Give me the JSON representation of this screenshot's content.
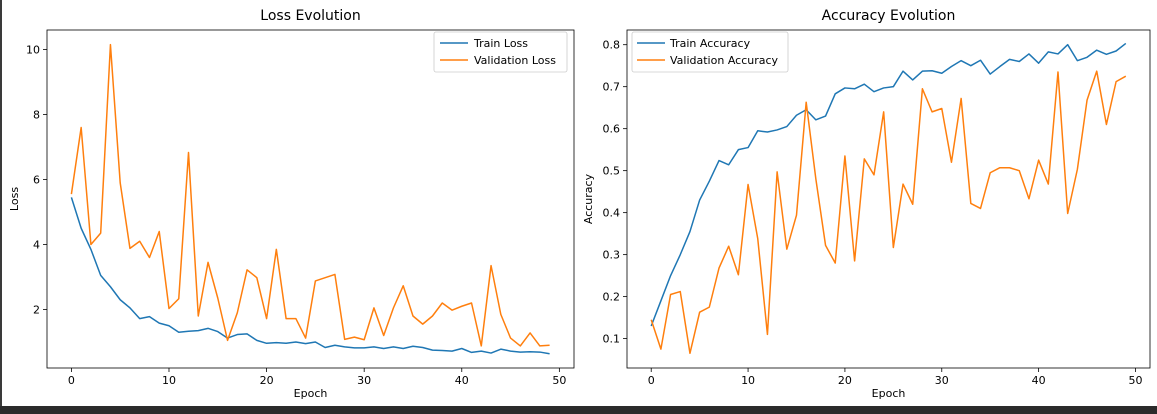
{
  "chart_data": [
    {
      "type": "line",
      "title": "Loss Evolution",
      "xlabel": "Epoch",
      "ylabel": "Loss",
      "xlim": [
        -2.5,
        51.5
      ],
      "ylim": [
        0.2,
        10.6
      ],
      "xticks": [
        0,
        10,
        20,
        30,
        40,
        50
      ],
      "yticks": [
        2,
        4,
        6,
        8,
        10
      ],
      "legend_position": "upper right",
      "x": [
        0,
        1,
        2,
        3,
        4,
        5,
        6,
        7,
        8,
        9,
        10,
        11,
        12,
        13,
        14,
        15,
        16,
        17,
        18,
        19,
        20,
        21,
        22,
        23,
        24,
        25,
        26,
        27,
        28,
        29,
        30,
        31,
        32,
        33,
        34,
        35,
        36,
        37,
        38,
        39,
        40,
        41,
        42,
        43,
        44,
        45,
        46,
        47,
        48,
        49
      ],
      "series": [
        {
          "name": "Train Loss",
          "color": "#1f77b4",
          "values": [
            5.45,
            4.5,
            3.85,
            3.05,
            2.7,
            2.3,
            2.05,
            1.72,
            1.78,
            1.58,
            1.5,
            1.3,
            1.33,
            1.35,
            1.42,
            1.32,
            1.12,
            1.23,
            1.25,
            1.05,
            0.96,
            0.98,
            0.96,
            1.0,
            0.95,
            1.0,
            0.83,
            0.9,
            0.85,
            0.82,
            0.82,
            0.85,
            0.8,
            0.85,
            0.8,
            0.87,
            0.83,
            0.75,
            0.74,
            0.72,
            0.8,
            0.68,
            0.72,
            0.66,
            0.78,
            0.72,
            0.69,
            0.7,
            0.69,
            0.64
          ]
        },
        {
          "name": "Validation Loss",
          "color": "#ff7f0e",
          "values": [
            5.55,
            7.6,
            4.0,
            4.35,
            10.15,
            5.9,
            3.88,
            4.1,
            3.6,
            4.4,
            2.03,
            2.33,
            6.83,
            1.8,
            3.45,
            2.35,
            1.05,
            1.9,
            3.22,
            2.98,
            1.72,
            3.85,
            1.72,
            1.72,
            1.12,
            2.88,
            2.98,
            3.08,
            1.08,
            1.15,
            1.07,
            2.05,
            1.2,
            2.05,
            2.73,
            1.8,
            1.55,
            1.8,
            2.2,
            1.98,
            2.1,
            2.2,
            0.88,
            3.35,
            1.85,
            1.12,
            0.88,
            1.28,
            0.88,
            0.9
          ]
        }
      ]
    },
    {
      "type": "line",
      "title": "Accuracy Evolution",
      "xlabel": "Epoch",
      "ylabel": "Accuracy",
      "xlim": [
        -2.5,
        51.5
      ],
      "ylim": [
        0.03,
        0.835
      ],
      "xticks": [
        0,
        10,
        20,
        30,
        40,
        50
      ],
      "yticks": [
        0.1,
        0.2,
        0.3,
        0.4,
        0.5,
        0.6,
        0.7,
        0.8
      ],
      "legend_position": "upper left",
      "x": [
        0,
        1,
        2,
        3,
        4,
        5,
        6,
        7,
        8,
        9,
        10,
        11,
        12,
        13,
        14,
        15,
        16,
        17,
        18,
        19,
        20,
        21,
        22,
        23,
        24,
        25,
        26,
        27,
        28,
        29,
        30,
        31,
        32,
        33,
        34,
        35,
        36,
        37,
        38,
        39,
        40,
        41,
        42,
        43,
        44,
        45,
        46,
        47,
        48,
        49
      ],
      "series": [
        {
          "name": "Train Accuracy",
          "color": "#1f77b4",
          "values": [
            0.13,
            0.19,
            0.25,
            0.3,
            0.355,
            0.43,
            0.475,
            0.524,
            0.514,
            0.55,
            0.555,
            0.595,
            0.592,
            0.597,
            0.605,
            0.632,
            0.645,
            0.621,
            0.63,
            0.683,
            0.697,
            0.695,
            0.706,
            0.688,
            0.697,
            0.7,
            0.737,
            0.716,
            0.737,
            0.738,
            0.732,
            0.748,
            0.762,
            0.75,
            0.763,
            0.73,
            0.748,
            0.765,
            0.76,
            0.778,
            0.756,
            0.783,
            0.778,
            0.8,
            0.762,
            0.77,
            0.787,
            0.777,
            0.785,
            0.803
          ]
        },
        {
          "name": "Validation Accuracy",
          "color": "#ff7f0e",
          "values": [
            0.145,
            0.075,
            0.205,
            0.212,
            0.065,
            0.163,
            0.175,
            0.268,
            0.32,
            0.252,
            0.467,
            0.338,
            0.11,
            0.497,
            0.313,
            0.394,
            0.663,
            0.48,
            0.322,
            0.28,
            0.535,
            0.285,
            0.528,
            0.49,
            0.64,
            0.317,
            0.468,
            0.42,
            0.695,
            0.64,
            0.648,
            0.52,
            0.672,
            0.422,
            0.41,
            0.495,
            0.507,
            0.507,
            0.5,
            0.433,
            0.525,
            0.468,
            0.735,
            0.398,
            0.503,
            0.668,
            0.737,
            0.61,
            0.712,
            0.725
          ]
        }
      ]
    }
  ]
}
